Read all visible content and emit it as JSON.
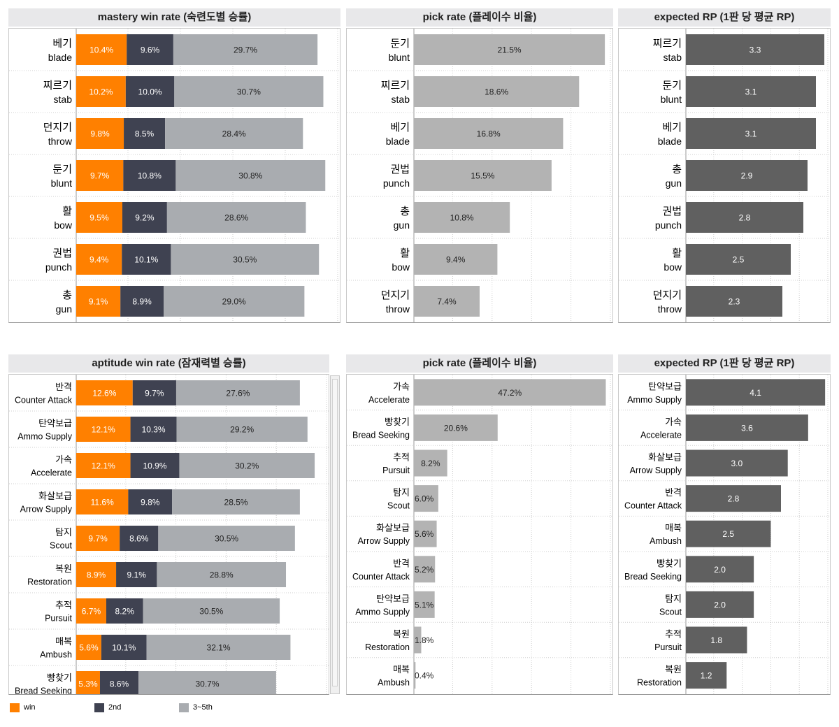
{
  "colors": {
    "win": "#ff8000",
    "second": "#3f4251",
    "rest": "#a9acb0",
    "pick": "#b3b3b3",
    "rp": "#606060",
    "label_light": "#ffffff",
    "label_dark": "#222222"
  },
  "legend": [
    {
      "label": "win",
      "color": "#ff8000"
    },
    {
      "label": "2nd",
      "color": "#3f4251"
    },
    {
      "label": "3~5th",
      "color": "#a9acb0"
    }
  ],
  "chart_data": [
    {
      "id": "mastery-win",
      "type": "bar",
      "stacked": true,
      "orientation": "horizontal",
      "title": "mastery win rate (숙련도별 승률)",
      "categories": [
        [
          "베기",
          "blade"
        ],
        [
          "찌르기",
          "stab"
        ],
        [
          "던지기",
          "throw"
        ],
        [
          "둔기",
          "blunt"
        ],
        [
          "활",
          "bow"
        ],
        [
          "권법",
          "punch"
        ],
        [
          "총",
          "gun"
        ]
      ],
      "series": [
        {
          "name": "win",
          "values": [
            10.4,
            10.2,
            9.8,
            9.7,
            9.5,
            9.4,
            9.1
          ]
        },
        {
          "name": "2nd",
          "values": [
            9.6,
            10.0,
            8.5,
            10.8,
            9.2,
            10.1,
            8.9
          ]
        },
        {
          "name": "3~5th",
          "values": [
            29.7,
            30.7,
            28.4,
            30.8,
            28.6,
            30.5,
            29.0
          ]
        }
      ],
      "value_labels": [
        [
          "10.4%",
          "10.2%",
          "9.8%",
          "9.7%",
          "9.5%",
          "9.4%",
          "9.1%"
        ],
        [
          "9.6%",
          "10.0%",
          "8.5%",
          "10.8%",
          "9.2%",
          "10.1%",
          "8.9%"
        ],
        [
          "29.7%",
          "30.7%",
          "28.4%",
          "30.8%",
          "28.6%",
          "30.5%",
          "29.0%"
        ]
      ],
      "xlim": [
        0,
        54
      ],
      "grid": true
    },
    {
      "id": "mastery-pick",
      "type": "bar",
      "orientation": "horizontal",
      "title": "pick rate (플레이수 비율)",
      "categories": [
        [
          "둔기",
          "blunt"
        ],
        [
          "찌르기",
          "stab"
        ],
        [
          "베기",
          "blade"
        ],
        [
          "권법",
          "punch"
        ],
        [
          "총",
          "gun"
        ],
        [
          "활",
          "bow"
        ],
        [
          "던지기",
          "throw"
        ]
      ],
      "values": [
        21.5,
        18.6,
        16.8,
        15.5,
        10.8,
        9.4,
        7.4
      ],
      "value_labels": [
        "21.5%",
        "18.6%",
        "16.8%",
        "15.5%",
        "10.8%",
        "9.4%",
        "7.4%"
      ],
      "xlim": [
        0,
        22.2
      ],
      "grid": true
    },
    {
      "id": "mastery-rp",
      "type": "bar",
      "orientation": "horizontal",
      "title": "expected RP (1판 당 평균 RP)",
      "categories": [
        [
          "찌르기",
          "stab"
        ],
        [
          "둔기",
          "blunt"
        ],
        [
          "베기",
          "blade"
        ],
        [
          "총",
          "gun"
        ],
        [
          "권법",
          "punch"
        ],
        [
          "활",
          "bow"
        ],
        [
          "던지기",
          "throw"
        ]
      ],
      "values": [
        3.3,
        3.1,
        3.1,
        2.9,
        2.8,
        2.5,
        2.3
      ],
      "value_labels": [
        "3.3",
        "3.1",
        "3.1",
        "2.9",
        "2.8",
        "2.5",
        "2.3"
      ],
      "xlim": [
        0,
        3.4
      ],
      "grid": true
    },
    {
      "id": "aptitude-win",
      "type": "bar",
      "stacked": true,
      "orientation": "horizontal",
      "title": "aptitude win rate (잠재력별 승률)",
      "categories": [
        [
          "반격",
          "Counter Attack"
        ],
        [
          "탄약보급",
          "Ammo Supply"
        ],
        [
          "가속",
          "Accelerate"
        ],
        [
          "화살보급",
          "Arrow Supply"
        ],
        [
          "탐지",
          "Scout"
        ],
        [
          "복원",
          "Restoration"
        ],
        [
          "추적",
          "Pursuit"
        ],
        [
          "매복",
          "Ambush"
        ],
        [
          "빵찾기",
          "Bread Seeking"
        ]
      ],
      "series": [
        {
          "name": "win",
          "values": [
            12.6,
            12.1,
            12.1,
            11.6,
            9.7,
            8.9,
            6.7,
            5.6,
            5.3
          ]
        },
        {
          "name": "2nd",
          "values": [
            9.7,
            10.3,
            10.9,
            9.8,
            8.6,
            9.1,
            8.2,
            10.1,
            8.6
          ]
        },
        {
          "name": "3~5th",
          "values": [
            27.6,
            29.2,
            30.2,
            28.5,
            30.5,
            28.8,
            30.5,
            32.1,
            30.7
          ]
        }
      ],
      "value_labels": [
        [
          "12.6%",
          "12.1%",
          "12.1%",
          "11.6%",
          "9.7%",
          "8.9%",
          "6.7%",
          "5.6%",
          "5.3%"
        ],
        [
          "9.7%",
          "10.3%",
          "10.9%",
          "9.8%",
          "8.6%",
          "9.1%",
          "8.2%",
          "10.1%",
          "8.6%"
        ],
        [
          "27.6%",
          "29.2%",
          "30.2%",
          "28.5%",
          "30.5%",
          "28.8%",
          "30.5%",
          "32.1%",
          "30.7%"
        ]
      ],
      "xlim": [
        0,
        56
      ],
      "grid": true
    },
    {
      "id": "aptitude-pick",
      "type": "bar",
      "orientation": "horizontal",
      "title": "pick rate (플레이수 비율)",
      "categories": [
        [
          "가속",
          "Accelerate"
        ],
        [
          "빵찾기",
          "Bread Seeking"
        ],
        [
          "추적",
          "Pursuit"
        ],
        [
          "탐지",
          "Scout"
        ],
        [
          "화살보급",
          "Arrow Supply"
        ],
        [
          "반격",
          "Counter Attack"
        ],
        [
          "탄약보급",
          "Ammo Supply"
        ],
        [
          "복원",
          "Restoration"
        ],
        [
          "매복",
          "Ambush"
        ]
      ],
      "values": [
        47.2,
        20.6,
        8.2,
        6.0,
        5.6,
        5.2,
        5.1,
        1.8,
        0.4
      ],
      "value_labels": [
        "47.2%",
        "20.6%",
        "8.2%",
        "6.0%",
        "5.6%",
        "5.2%",
        "5.1%",
        "1.8%",
        "0.4%"
      ],
      "xlim": [
        0,
        48.5
      ],
      "grid": true
    },
    {
      "id": "aptitude-rp",
      "type": "bar",
      "orientation": "horizontal",
      "title": "expected RP (1판 당 평균 RP)",
      "categories": [
        [
          "탄약보급",
          "Ammo Supply"
        ],
        [
          "가속",
          "Accelerate"
        ],
        [
          "화살보급",
          "Arrow Supply"
        ],
        [
          "반격",
          "Counter Attack"
        ],
        [
          "매복",
          "Ambush"
        ],
        [
          "빵찾기",
          "Bread Seeking"
        ],
        [
          "탐지",
          "Scout"
        ],
        [
          "추적",
          "Pursuit"
        ],
        [
          "복원",
          "Restoration"
        ]
      ],
      "values": [
        4.1,
        3.6,
        3.0,
        2.8,
        2.5,
        2.0,
        2.0,
        1.8,
        1.2
      ],
      "value_labels": [
        "4.1",
        "3.6",
        "3.0",
        "2.8",
        "2.5",
        "2.0",
        "2.0",
        "1.8",
        "1.2"
      ],
      "xlim": [
        0,
        4.2
      ],
      "grid": true
    }
  ]
}
